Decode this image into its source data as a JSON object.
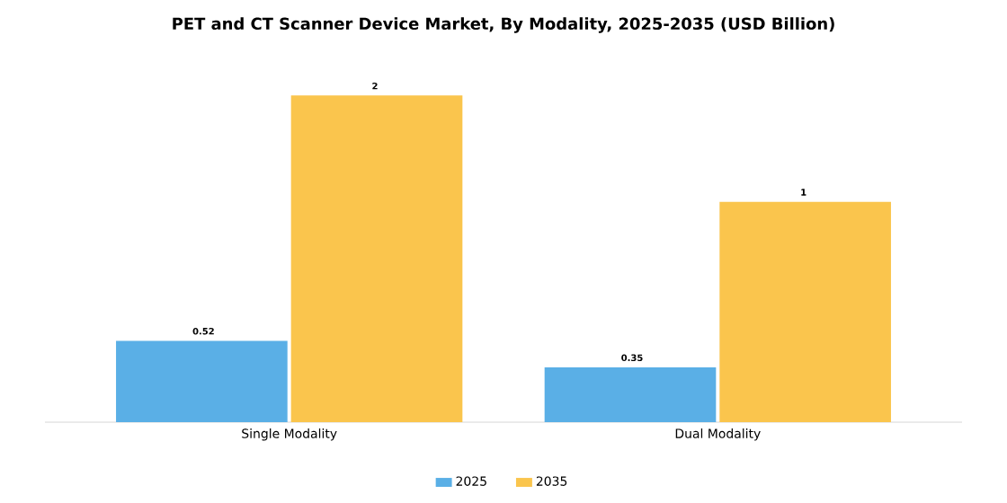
{
  "chart_data": {
    "type": "bar",
    "title": "PET and CT Scanner Device Market, By Modality, 2025-2035 (USD Billion)",
    "categories": [
      "Single Modality",
      "Dual Modality"
    ],
    "series": [
      {
        "name": "2025",
        "color": "#5aafe6",
        "values": [
          0.52,
          0.35
        ],
        "value_labels": [
          "0.52",
          "0.35"
        ]
      },
      {
        "name": "2035",
        "color": "#fac54d",
        "values": [
          2.09,
          1.41
        ],
        "value_labels": [
          "2",
          "1"
        ]
      }
    ],
    "legend": "bottom"
  }
}
